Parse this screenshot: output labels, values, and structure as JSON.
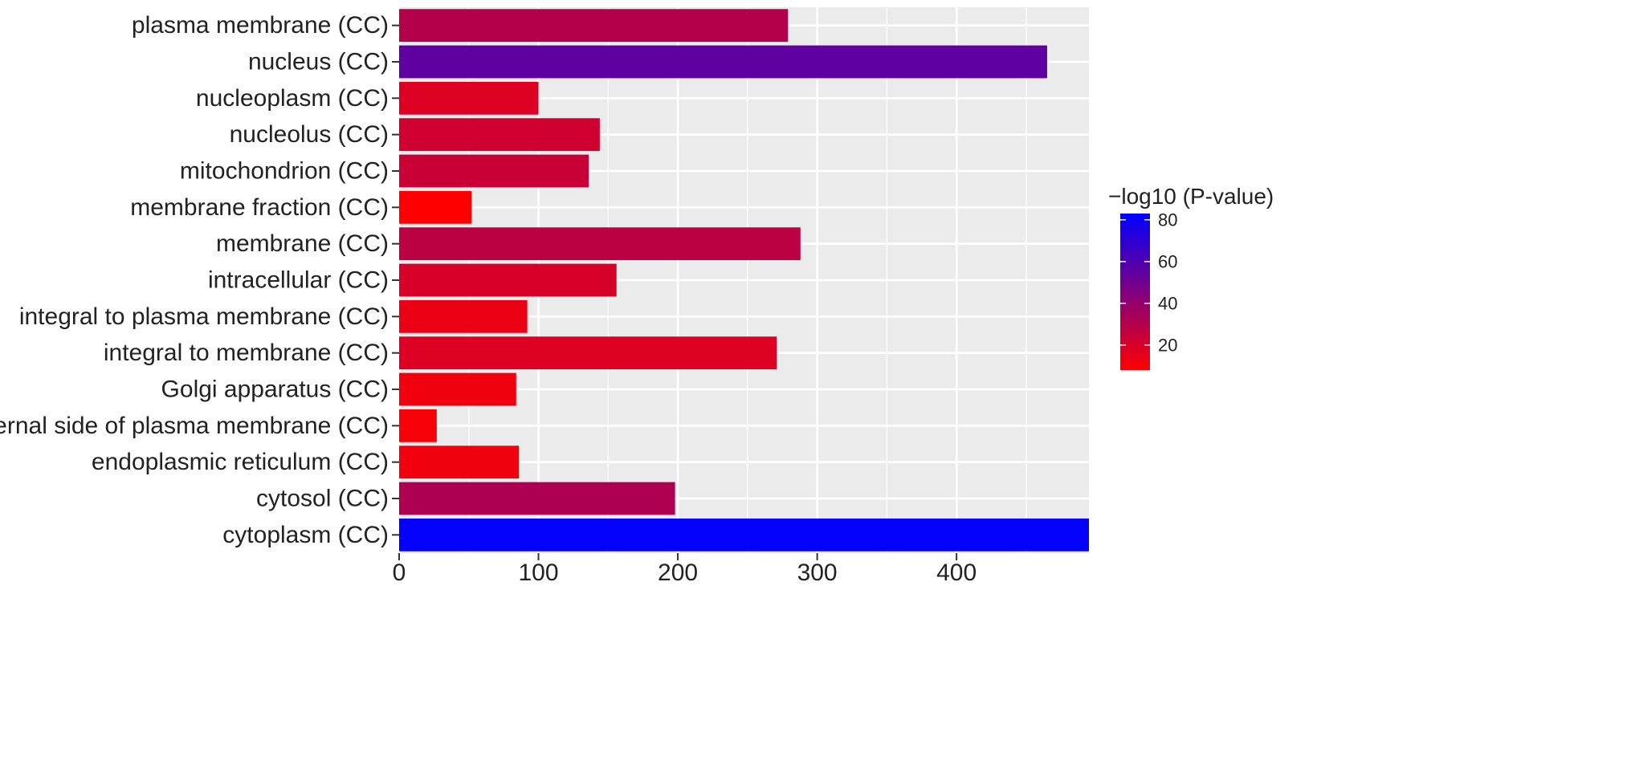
{
  "chart_data": {
    "type": "bar",
    "orientation": "horizontal",
    "categories": [
      "plasma membrane (CC)",
      "nucleus (CC)",
      "nucleoplasm (CC)",
      "nucleolus (CC)",
      "mitochondrion (CC)",
      "membrane fraction (CC)",
      "membrane (CC)",
      "intracellular (CC)",
      "integral to plasma membrane (CC)",
      "integral to membrane (CC)",
      "Golgi apparatus (CC)",
      "external side of plasma membrane (CC)",
      "endoplasmic reticulum (CC)",
      "cytosol (CC)",
      "cytoplasm (CC)"
    ],
    "values": [
      279,
      465,
      100,
      144,
      136,
      52,
      288,
      156,
      92,
      271,
      84,
      27,
      86,
      198,
      495
    ],
    "color_values": [
      30,
      55,
      18,
      22,
      24,
      8,
      28,
      20,
      14,
      18,
      12,
      10,
      12,
      32,
      82
    ],
    "xlim": [
      0,
      495
    ],
    "x_ticks": [
      0,
      100,
      200,
      300,
      400
    ],
    "x_tick_labels": [
      "0",
      "100",
      "200",
      "300",
      "400"
    ],
    "grid": true,
    "panel_background": "#EBEBEB",
    "legend": {
      "title": "−log10 (P-value)",
      "placement": "right",
      "low_color": "#FF0000",
      "high_color": "#0000FF",
      "range": [
        8,
        83
      ],
      "ticks": [
        20,
        40,
        60,
        80
      ],
      "tick_labels": [
        "20",
        "40",
        "60",
        "80"
      ]
    }
  }
}
